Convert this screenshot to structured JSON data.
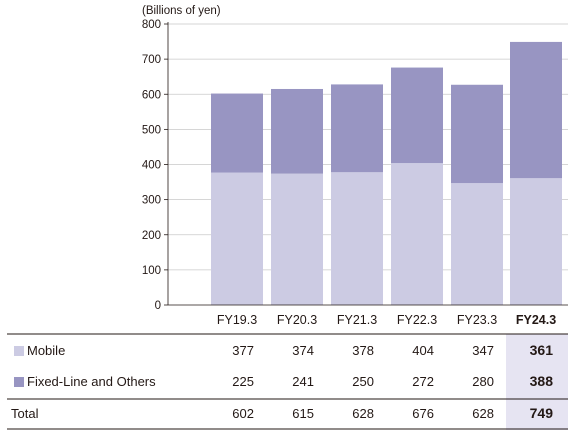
{
  "chart_data": {
    "type": "bar",
    "stacked": true,
    "unit_label": "(Billions of yen)",
    "categories": [
      "FY19.3",
      "FY20.3",
      "FY21.3",
      "FY22.3",
      "FY23.3",
      "FY24.3"
    ],
    "highlight_category": "FY24.3",
    "ylim": [
      0,
      800
    ],
    "yticks": [
      0,
      100,
      200,
      300,
      400,
      500,
      600,
      700,
      800
    ],
    "grid": true,
    "series": [
      {
        "name": "Mobile",
        "values": [
          377,
          374,
          378,
          404,
          347,
          361
        ],
        "color": "#cccbe3"
      },
      {
        "name": "Fixed-Line and Others",
        "values": [
          225,
          241,
          250,
          272,
          280,
          388
        ],
        "color": "#9895c2"
      }
    ],
    "total_label": "Total",
    "totals": [
      602,
      615,
      628,
      676,
      628,
      749
    ]
  },
  "colors": {
    "highlight_column": "#e6e4f2",
    "table_line": "#231815"
  }
}
